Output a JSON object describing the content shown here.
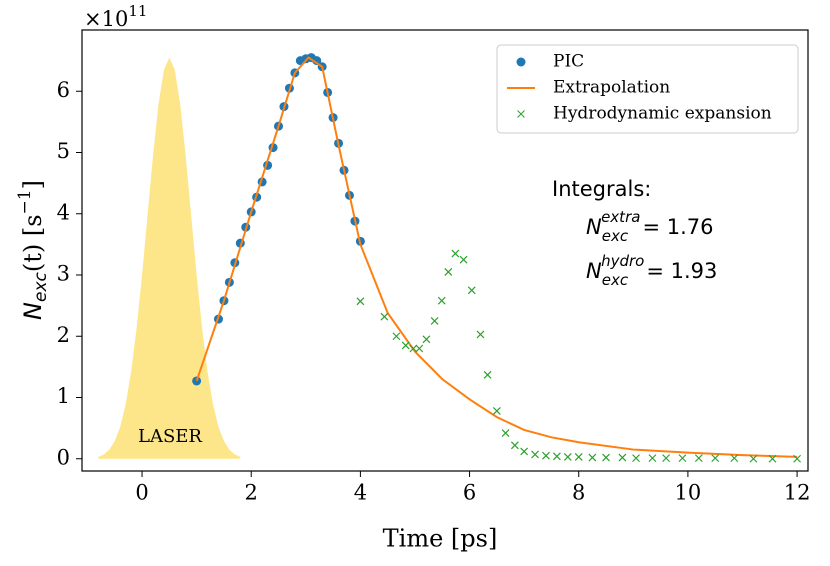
{
  "chart_data": {
    "type": "line",
    "xlabel": "Time [ps]",
    "ylabel": {
      "symbol": "N",
      "sub": "exc",
      "arg": "(t) [s",
      "sup": "−1",
      "close": "]"
    },
    "offset_text": {
      "base": "×10",
      "exp": "11"
    },
    "xlim": [
      -1.1,
      12.2
    ],
    "ylim": [
      -0.2,
      7.0
    ],
    "xticks": [
      0,
      2,
      4,
      6,
      8,
      10,
      12
    ],
    "yticks": [
      0,
      1,
      2,
      3,
      4,
      5,
      6
    ],
    "legend": "upper right",
    "series": [
      {
        "type": "area",
        "color": "#fde68a",
        "x": [
          -0.8,
          -0.7,
          -0.6,
          -0.5,
          -0.4,
          -0.3,
          -0.2,
          -0.1,
          0.0,
          0.1,
          0.2,
          0.3,
          0.4,
          0.5,
          0.6,
          0.7,
          0.8,
          0.9,
          1.0,
          1.1,
          1.2,
          1.3,
          1.4,
          1.5,
          1.6,
          1.7,
          1.8
        ],
        "values": [
          0.03,
          0.07,
          0.15,
          0.29,
          0.52,
          0.89,
          1.42,
          2.13,
          3.0,
          3.97,
          4.94,
          5.78,
          6.35,
          6.55,
          6.35,
          5.78,
          4.94,
          3.97,
          3.0,
          2.13,
          1.42,
          0.89,
          0.52,
          0.29,
          0.15,
          0.07,
          0.03
        ]
      },
      {
        "type": "scatter",
        "name": "PIC",
        "color": "#1f77b4",
        "x": [
          1.0,
          1.4,
          1.5,
          1.6,
          1.7,
          1.8,
          1.9,
          2.0,
          2.1,
          2.2,
          2.3,
          2.4,
          2.5,
          2.6,
          2.7,
          2.8,
          2.9,
          3.0,
          3.1,
          3.2,
          3.3,
          3.4,
          3.5,
          3.6,
          3.7,
          3.8,
          3.9,
          4.0
        ],
        "values": [
          1.27,
          2.28,
          2.58,
          2.88,
          3.2,
          3.52,
          3.78,
          4.03,
          4.27,
          4.52,
          4.79,
          5.08,
          5.43,
          5.75,
          6.05,
          6.3,
          6.5,
          6.53,
          6.55,
          6.5,
          6.4,
          5.98,
          5.57,
          5.15,
          4.71,
          4.3,
          3.88,
          3.55
        ]
      },
      {
        "type": "line",
        "name": "Extrapolation",
        "color": "#ff7f0e",
        "x": [
          1.0,
          1.5,
          2.0,
          2.5,
          2.8,
          3.05,
          3.3,
          3.6,
          4.0,
          4.5,
          5.0,
          5.5,
          6.0,
          6.5,
          7.0,
          7.5,
          8.0,
          9.0,
          10.0,
          11.0,
          12.0
        ],
        "values": [
          1.27,
          2.58,
          4.03,
          5.43,
          6.3,
          6.55,
          6.4,
          5.12,
          3.5,
          2.38,
          1.75,
          1.3,
          0.97,
          0.68,
          0.47,
          0.35,
          0.27,
          0.15,
          0.1,
          0.06,
          0.03
        ]
      },
      {
        "type": "scatter-x",
        "name": "Hydrodynamic expansion",
        "color": "#2ca02c",
        "x": [
          4.0,
          4.44,
          4.66,
          4.83,
          4.97,
          5.08,
          5.21,
          5.36,
          5.49,
          5.61,
          5.74,
          5.89,
          6.04,
          6.2,
          6.33,
          6.5,
          6.66,
          6.83,
          7.0,
          7.2,
          7.4,
          7.6,
          7.8,
          8.0,
          8.25,
          8.5,
          8.8,
          9.05,
          9.35,
          9.6,
          9.9,
          10.2,
          10.5,
          10.85,
          11.2,
          11.55,
          12.0
        ],
        "values": [
          2.57,
          2.32,
          2.0,
          1.85,
          1.8,
          1.8,
          1.95,
          2.25,
          2.58,
          3.05,
          3.35,
          3.25,
          2.75,
          2.03,
          1.37,
          0.78,
          0.42,
          0.22,
          0.12,
          0.07,
          0.05,
          0.04,
          0.03,
          0.03,
          0.02,
          0.02,
          0.02,
          0.01,
          0.01,
          0.01,
          0.01,
          0.01,
          0.01,
          0.01,
          0.0,
          0.0,
          0.0
        ]
      }
    ],
    "annotations": {
      "laser": "LASER",
      "integrals": "Integrals:",
      "extra": {
        "symbol": "N",
        "sub": "exc",
        "sup": "extra",
        "eq": "= 1.76"
      },
      "hydro": {
        "symbol": "N",
        "sub": "exc",
        "sup": "hydro",
        "eq": "= 1.93"
      }
    }
  }
}
